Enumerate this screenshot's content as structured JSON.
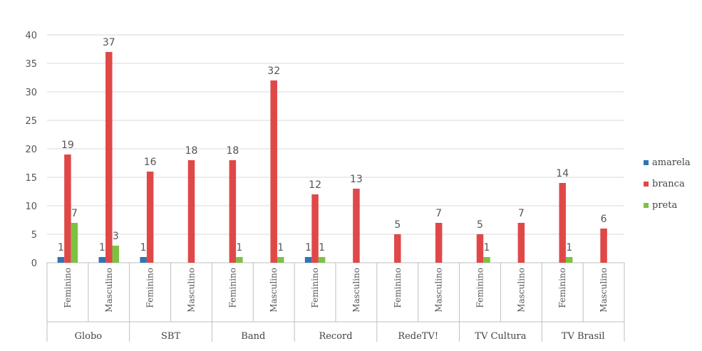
{
  "chart_data": {
    "type": "bar",
    "title": "",
    "xlabel": "",
    "ylabel": "",
    "ylim": [
      0,
      40
    ],
    "yticks": [
      0,
      5,
      10,
      15,
      20,
      25,
      30,
      35,
      40
    ],
    "grid": true,
    "legend_position": "right",
    "groups": [
      {
        "name": "Globo",
        "categories": [
          "Feminino",
          "Masculino"
        ]
      },
      {
        "name": "SBT",
        "categories": [
          "Feminino",
          "Masculino"
        ]
      },
      {
        "name": "Band",
        "categories": [
          "Feminino",
          "Masculino"
        ]
      },
      {
        "name": "Record",
        "categories": [
          "Feminino",
          "Masculino"
        ]
      },
      {
        "name": "RedeTV!",
        "categories": [
          "Feminino",
          "Masculino"
        ]
      },
      {
        "name": "TV Cultura",
        "categories": [
          "Feminino",
          "Masculino"
        ]
      },
      {
        "name": "TV Brasil",
        "categories": [
          "Feminino",
          "Masculino"
        ]
      }
    ],
    "series": [
      {
        "name": "amarela",
        "color": "#2e75b6",
        "values": [
          1,
          1,
          1,
          null,
          null,
          null,
          1,
          null,
          null,
          null,
          null,
          null,
          null,
          null
        ]
      },
      {
        "name": "branca",
        "color": "#e04848",
        "values": [
          19,
          37,
          16,
          18,
          18,
          32,
          12,
          13,
          5,
          7,
          5,
          7,
          14,
          6
        ]
      },
      {
        "name": "preta",
        "color": "#7cc242",
        "values": [
          7,
          3,
          null,
          null,
          1,
          1,
          1,
          null,
          null,
          null,
          1,
          null,
          1,
          null
        ]
      }
    ]
  }
}
